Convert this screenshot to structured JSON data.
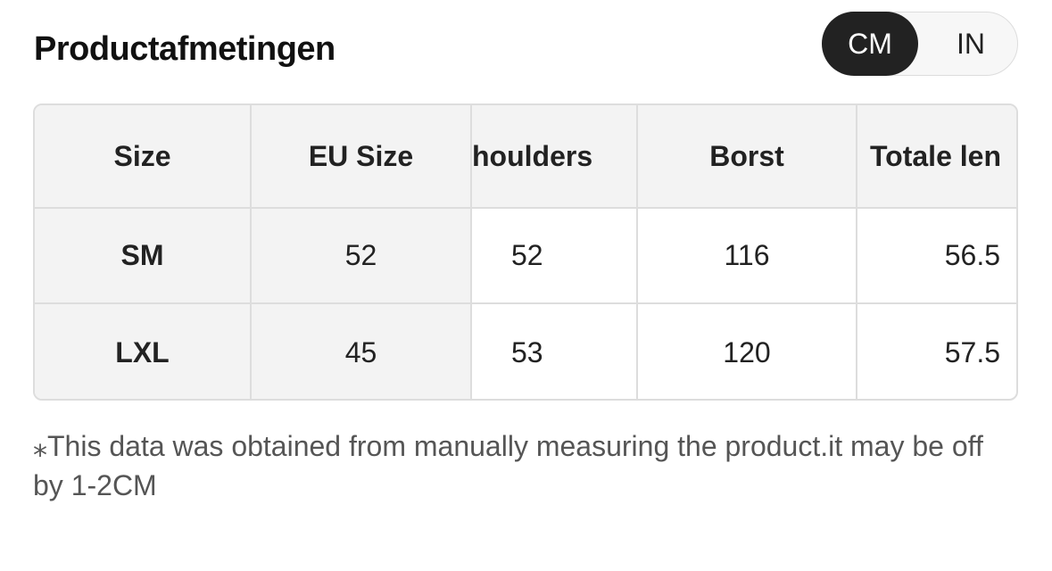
{
  "header": {
    "title": "Productafmetingen",
    "units": [
      "CM",
      "IN"
    ]
  },
  "table": {
    "columns": [
      "Size",
      "EU Size",
      "houlders",
      "Borst",
      "Totale len"
    ],
    "rows": [
      [
        "SM",
        52,
        52,
        116,
        56.5
      ],
      [
        "LXL",
        45,
        53,
        120,
        57.5
      ]
    ]
  },
  "note": "⁎This data was obtained from manually measuring the product.it may be off by 1-2CM"
}
